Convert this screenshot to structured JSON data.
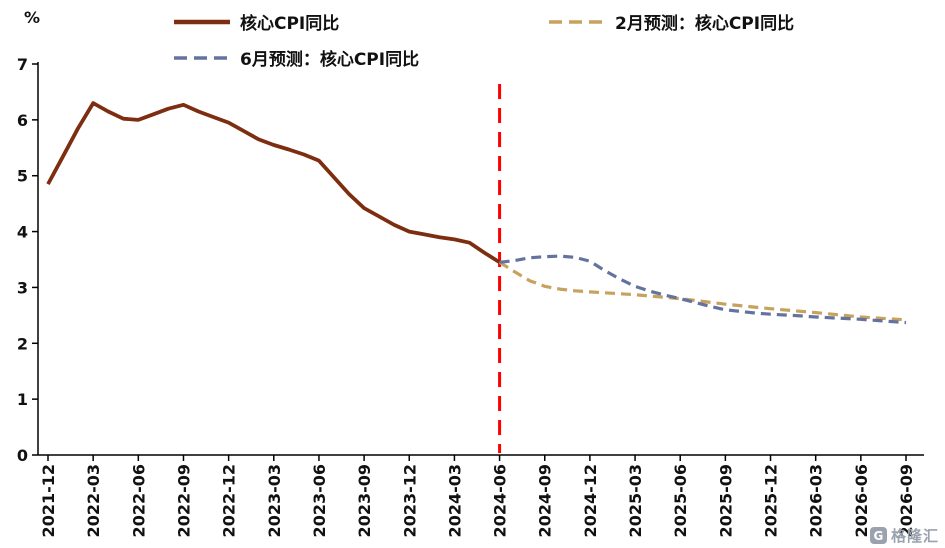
{
  "chart_data": {
    "type": "line",
    "title": "",
    "ylabel": "%",
    "xlabel": "",
    "ylim": [
      0,
      7
    ],
    "yticks": [
      0,
      1,
      2,
      3,
      4,
      5,
      6,
      7
    ],
    "grid": false,
    "legend_position": "top",
    "x_tick_labels": [
      "2021-12",
      "2022-03",
      "2022-06",
      "2022-09",
      "2022-12",
      "2023-03",
      "2023-06",
      "2023-09",
      "2023-12",
      "2024-03",
      "2024-06",
      "2024-09",
      "2024-12",
      "2025-03",
      "2025-06",
      "2025-09",
      "2025-12",
      "2026-03",
      "2026-06",
      "2026-09"
    ],
    "x_months_per_tick": 3,
    "x_total_months": 57,
    "forecast_divider": {
      "month_index": 30,
      "at_x_label": "2024-06",
      "color": "#FF0000",
      "style": "dashed"
    },
    "series": [
      {
        "name": "核心CPI同比",
        "color": "#7E2E10",
        "style": "solid",
        "points": [
          [
            0,
            4.85
          ],
          [
            1,
            5.35
          ],
          [
            2,
            5.85
          ],
          [
            3,
            6.3
          ],
          [
            4,
            6.15
          ],
          [
            5,
            6.02
          ],
          [
            6,
            6.0
          ],
          [
            7,
            6.1
          ],
          [
            8,
            6.2
          ],
          [
            9,
            6.27
          ],
          [
            10,
            6.15
          ],
          [
            11,
            6.05
          ],
          [
            12,
            5.95
          ],
          [
            13,
            5.8
          ],
          [
            14,
            5.65
          ],
          [
            15,
            5.55
          ],
          [
            16,
            5.47
          ],
          [
            17,
            5.38
          ],
          [
            18,
            5.27
          ],
          [
            19,
            4.97
          ],
          [
            20,
            4.67
          ],
          [
            21,
            4.42
          ],
          [
            22,
            4.27
          ],
          [
            23,
            4.12
          ],
          [
            24,
            4.0
          ],
          [
            25,
            3.95
          ],
          [
            26,
            3.9
          ],
          [
            27,
            3.86
          ],
          [
            28,
            3.8
          ],
          [
            29,
            3.62
          ],
          [
            30,
            3.45
          ]
        ]
      },
      {
        "name": "2月预测：核心CPI同比",
        "color": "#C6A25E",
        "style": "dashed",
        "points": [
          [
            30,
            3.45
          ],
          [
            31,
            3.28
          ],
          [
            32,
            3.12
          ],
          [
            33,
            3.02
          ],
          [
            34,
            2.97
          ],
          [
            35,
            2.94
          ],
          [
            36,
            2.92
          ],
          [
            39,
            2.87
          ],
          [
            42,
            2.8
          ],
          [
            45,
            2.7
          ],
          [
            48,
            2.62
          ],
          [
            51,
            2.55
          ],
          [
            54,
            2.47
          ],
          [
            57,
            2.42
          ]
        ]
      },
      {
        "name": "6月预测：核心CPI同比",
        "color": "#63739E",
        "style": "dashed",
        "points": [
          [
            30,
            3.45
          ],
          [
            31,
            3.48
          ],
          [
            32,
            3.53
          ],
          [
            33,
            3.55
          ],
          [
            34,
            3.56
          ],
          [
            35,
            3.54
          ],
          [
            36,
            3.47
          ],
          [
            37,
            3.3
          ],
          [
            38,
            3.15
          ],
          [
            39,
            3.02
          ],
          [
            40,
            2.93
          ],
          [
            41,
            2.86
          ],
          [
            42,
            2.8
          ],
          [
            43,
            2.73
          ],
          [
            44,
            2.66
          ],
          [
            45,
            2.6
          ],
          [
            46,
            2.57
          ],
          [
            47,
            2.54
          ],
          [
            48,
            2.52
          ],
          [
            50,
            2.49
          ],
          [
            51,
            2.47
          ],
          [
            54,
            2.43
          ],
          [
            57,
            2.37
          ]
        ]
      }
    ]
  },
  "watermark": {
    "logo_letter": "G",
    "text": "格隆汇"
  }
}
